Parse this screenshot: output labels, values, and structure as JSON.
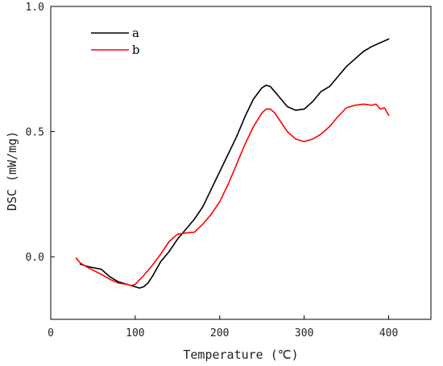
{
  "chart_data": {
    "type": "line",
    "xlabel": "Temperature (℃)",
    "ylabel": "DSC (mW/mg)",
    "xlim": [
      0,
      450
    ],
    "ylim": [
      -0.25,
      1.0
    ],
    "xticks": [
      0,
      100,
      200,
      300,
      400
    ],
    "yticks": [
      0.0,
      0.5,
      1.0
    ],
    "xtick_labels": [
      "0",
      "100",
      "200",
      "300",
      "400"
    ],
    "ytick_labels": [
      "0.0",
      "0.5",
      "1.0"
    ],
    "grid": false,
    "legend_position": "top-left",
    "series": [
      {
        "name": "a",
        "color": "#000000",
        "x": [
          35,
          45,
          60,
          70,
          80,
          90,
          100,
          105,
          110,
          115,
          120,
          125,
          130,
          140,
          150,
          160,
          170,
          180,
          190,
          200,
          210,
          220,
          230,
          240,
          250,
          255,
          260,
          265,
          270,
          280,
          290,
          300,
          310,
          320,
          330,
          340,
          350,
          360,
          370,
          380,
          390,
          400
        ],
        "y": [
          -0.03,
          -0.04,
          -0.05,
          -0.08,
          -0.1,
          -0.11,
          -0.12,
          -0.125,
          -0.12,
          -0.105,
          -0.08,
          -0.05,
          -0.02,
          0.02,
          0.07,
          0.11,
          0.15,
          0.2,
          0.27,
          0.34,
          0.41,
          0.48,
          0.56,
          0.63,
          0.675,
          0.685,
          0.68,
          0.66,
          0.64,
          0.6,
          0.585,
          0.59,
          0.62,
          0.66,
          0.68,
          0.72,
          0.76,
          0.79,
          0.82,
          0.84,
          0.855,
          0.87
        ]
      },
      {
        "name": "b",
        "color": "#ff0000",
        "x": [
          30,
          35,
          45,
          60,
          70,
          80,
          90,
          95,
          100,
          110,
          120,
          130,
          140,
          150,
          160,
          170,
          180,
          190,
          200,
          210,
          220,
          230,
          240,
          250,
          255,
          260,
          265,
          270,
          280,
          290,
          300,
          310,
          320,
          330,
          340,
          350,
          360,
          370,
          380,
          385,
          390,
          395,
          400
        ],
        "y": [
          -0.005,
          -0.025,
          -0.045,
          -0.07,
          -0.09,
          -0.105,
          -0.11,
          -0.115,
          -0.11,
          -0.075,
          -0.035,
          0.01,
          0.06,
          0.09,
          0.095,
          0.098,
          0.13,
          0.17,
          0.22,
          0.29,
          0.37,
          0.45,
          0.52,
          0.575,
          0.59,
          0.59,
          0.575,
          0.55,
          0.5,
          0.47,
          0.46,
          0.47,
          0.49,
          0.52,
          0.56,
          0.595,
          0.605,
          0.61,
          0.605,
          0.61,
          0.59,
          0.595,
          0.565
        ]
      }
    ]
  }
}
